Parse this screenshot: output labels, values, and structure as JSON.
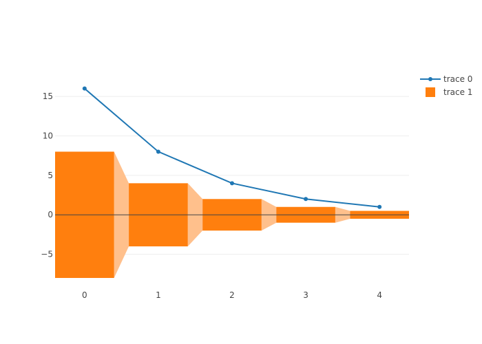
{
  "chart_data": {
    "type": "funnel",
    "x_ticks": [
      0,
      1,
      2,
      3,
      4
    ],
    "y_ticks": [
      -5,
      0,
      5,
      10,
      15
    ],
    "xlim": [
      -0.4,
      4.4
    ],
    "ylim": [
      -8,
      18.5
    ],
    "grid": true,
    "legend_position": "top-right",
    "series": [
      {
        "name": "trace 0",
        "type": "line",
        "x": [
          0,
          1,
          2,
          3,
          4
        ],
        "y": [
          16,
          8,
          4,
          2,
          1
        ],
        "color": "#1f77b4"
      },
      {
        "name": "trace 1",
        "type": "bar",
        "x": [
          0,
          1,
          2,
          3,
          4
        ],
        "values": [
          16,
          8,
          4,
          2,
          1
        ],
        "color": "#ff7f0e",
        "connector_color": "#ffc08c"
      }
    ]
  }
}
